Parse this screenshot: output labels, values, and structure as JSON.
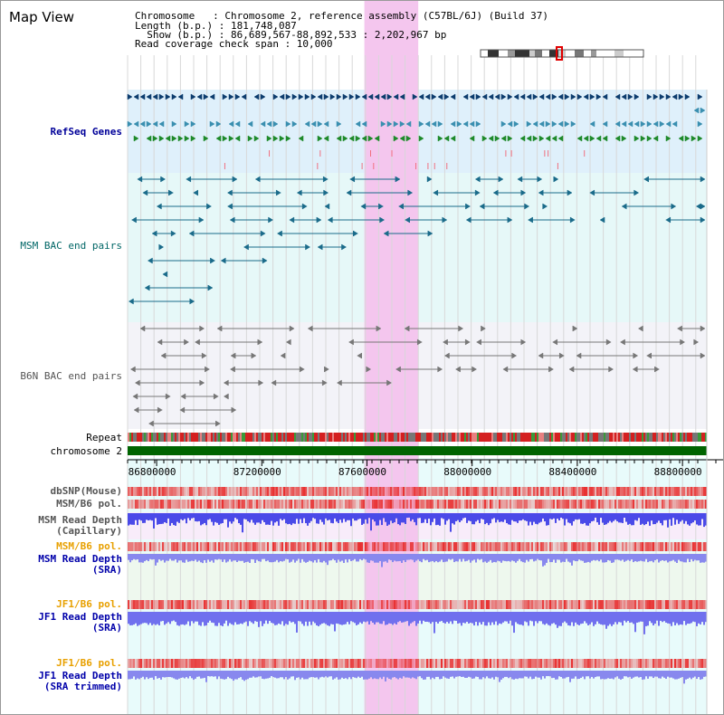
{
  "page": {
    "title": "Map View"
  },
  "info": {
    "chromosome_line": "Chromosome   : Chromosome 2, reference assembly (C57BL/6J) (Build 37)",
    "length_line": "Length (b.p.) : 181,748,087",
    "show_line": "  Show (b.p.) : 86,689,567-88,892,533 : 2,202,967 bp",
    "span_line": "Read coverage check span : 10,000"
  },
  "tracks": {
    "refseq": "RefSeq Genes",
    "msm_bac": "MSM BAC end pairs",
    "b6n_bac": "B6N BAC end pairs",
    "repeat": "Repeat",
    "chromosome": "chromosome 2",
    "dbsnp": "dbSNP(Mouse)",
    "msm_b6_pol_1": "MSM/B6 pol.",
    "msm_read_depth_cap_1": "MSM Read Depth",
    "msm_read_depth_cap_2": "(Capillary)",
    "msm_b6_pol_2": "MSM/B6 pol.",
    "msm_read_depth_sra_1": "MSM Read Depth",
    "msm_read_depth_sra_2": "(SRA)",
    "jf1_b6_pol_1": "JF1/B6 pol.",
    "jf1_read_depth_sra_1": "JF1 Read Depth",
    "jf1_read_depth_sra_2": "(SRA)",
    "jf1_b6_pol_2": "JF1/B6 pol.",
    "jf1_read_depth_trim_1": "JF1 Read Depth",
    "jf1_read_depth_trim_2": "(SRA trimmed)"
  },
  "axis": {
    "start_bp": 86689567,
    "end_bp": 88892533,
    "ticks": [
      "86800000",
      "87200000",
      "87600000",
      "88000000",
      "88400000",
      "88800000"
    ],
    "tick_values": [
      86800000,
      87200000,
      87600000,
      88000000,
      88400000,
      88800000
    ]
  },
  "highlight": {
    "start_bp": 87590000,
    "end_bp": 87795000
  },
  "colors": {
    "refseq_dark": "#0d3d6e",
    "refseq_mid": "#3a8fb0",
    "refseq_green": "#1e8a2a",
    "msm_feature": "#1a6b8a",
    "b6n_feature": "#777777",
    "chromosome_bar": "#006400",
    "depth_blue": "#4a4ae8",
    "depth_light": "#8888ee",
    "highlight": "#f4c6ee",
    "pol_red": "#e83030"
  }
}
